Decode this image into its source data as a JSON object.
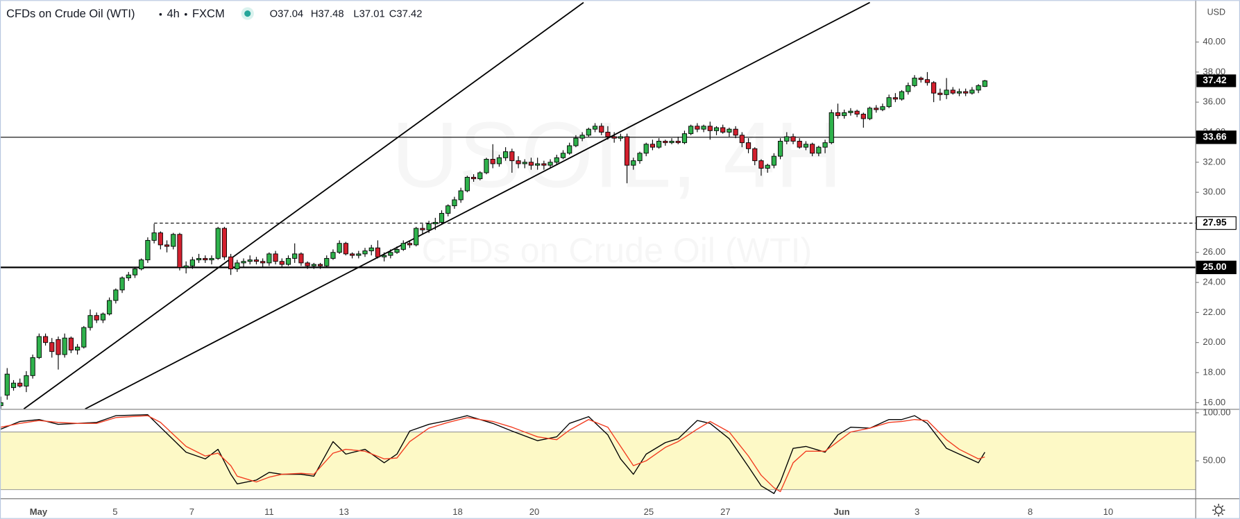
{
  "header": {
    "symbol": "CFDs on Crude Oil (WTI)",
    "interval": "4h",
    "source": "FXCM",
    "ohlc": [
      "O37.04",
      "H37.48",
      "L37.01",
      "C37.42"
    ]
  },
  "watermark": {
    "title": "USOIL, 4H",
    "subtitle": "CFDs on Crude Oil (WTI)"
  },
  "chart_data": [
    {
      "type": "candlestick",
      "currency": "USD",
      "xlim": [
        -0.12,
        187
      ],
      "ylim": [
        15.58,
        42.63
      ],
      "xticks": [
        {
          "value": 5.9,
          "label": "May"
        },
        {
          "value": 17.9,
          "label": "5"
        },
        {
          "value": 29.9,
          "label": "7"
        },
        {
          "value": 42,
          "label": "11"
        },
        {
          "value": 53.7,
          "label": "13"
        },
        {
          "value": 71.5,
          "label": "18"
        },
        {
          "value": 83.5,
          "label": "20"
        },
        {
          "value": 101.4,
          "label": "25"
        },
        {
          "value": 113.4,
          "label": "27"
        },
        {
          "value": 131.6,
          "label": "Jun"
        },
        {
          "value": 143.4,
          "label": "3"
        },
        {
          "value": 161.1,
          "label": "8"
        },
        {
          "value": 173.3,
          "label": "10"
        }
      ],
      "yticks": [
        {
          "value": 16,
          "label": "16.00"
        },
        {
          "value": 18,
          "label": "18.00"
        },
        {
          "value": 20,
          "label": "20.00"
        },
        {
          "value": 22,
          "label": "22.00"
        },
        {
          "value": 24,
          "label": "24.00"
        },
        {
          "value": 26,
          "label": "26.00"
        },
        {
          "value": 28,
          "label": "28.00"
        },
        {
          "value": 30,
          "label": "30.00"
        },
        {
          "value": 32,
          "label": "32.00"
        },
        {
          "value": 34,
          "label": "34.00"
        },
        {
          "value": 36,
          "label": "36.00"
        },
        {
          "value": 38,
          "label": "38.00"
        },
        {
          "value": 40,
          "label": "40.00"
        }
      ],
      "up_color": "#2fb24c",
      "down_color": "#d3202e",
      "ohlc": [
        [
          15.8,
          16.4,
          15.6,
          16.0
        ],
        [
          16.5,
          18.3,
          16.2,
          17.9
        ],
        [
          17.0,
          17.5,
          16.8,
          17.3
        ],
        [
          17.3,
          17.6,
          17.0,
          17.1
        ],
        [
          17.1,
          18.1,
          16.7,
          17.8
        ],
        [
          17.8,
          19.2,
          17.6,
          19.0
        ],
        [
          19.0,
          20.6,
          18.9,
          20.4
        ],
        [
          20.4,
          20.6,
          19.8,
          20.0
        ],
        [
          20.0,
          20.3,
          19.0,
          19.4
        ],
        [
          20.2,
          20.4,
          18.2,
          19.2
        ],
        [
          19.2,
          20.6,
          19.0,
          20.3
        ],
        [
          20.3,
          20.4,
          19.3,
          19.5
        ],
        [
          19.5,
          19.9,
          19.2,
          19.7
        ],
        [
          19.7,
          21.1,
          19.6,
          21.0
        ],
        [
          21.0,
          22.2,
          20.8,
          21.8
        ],
        [
          21.8,
          22.0,
          21.3,
          21.5
        ],
        [
          21.5,
          22.0,
          21.3,
          21.9
        ],
        [
          21.9,
          23.0,
          21.8,
          22.8
        ],
        [
          22.8,
          23.6,
          22.6,
          23.5
        ],
        [
          23.5,
          24.4,
          23.3,
          24.3
        ],
        [
          24.3,
          24.7,
          24.1,
          24.5
        ],
        [
          24.5,
          25.0,
          24.3,
          24.9
        ],
        [
          24.9,
          25.6,
          24.8,
          25.5
        ],
        [
          25.5,
          27.0,
          25.3,
          26.8
        ],
        [
          26.8,
          27.9,
          26.6,
          27.3
        ],
        [
          27.3,
          27.4,
          26.2,
          26.5
        ],
        [
          26.5,
          26.8,
          26.0,
          26.4
        ],
        [
          26.4,
          27.3,
          26.2,
          27.2
        ],
        [
          27.2,
          27.3,
          24.8,
          25.0
        ],
        [
          25.0,
          25.4,
          24.6,
          25.1
        ],
        [
          25.1,
          25.7,
          24.9,
          25.5
        ],
        [
          25.5,
          25.9,
          25.3,
          25.6
        ],
        [
          25.6,
          25.8,
          25.3,
          25.5
        ],
        [
          25.5,
          25.8,
          25.2,
          25.6
        ],
        [
          25.6,
          27.7,
          25.5,
          27.6
        ],
        [
          27.6,
          27.7,
          25.5,
          25.7
        ],
        [
          25.7,
          25.9,
          24.5,
          24.9
        ],
        [
          24.9,
          25.5,
          24.7,
          25.3
        ],
        [
          25.3,
          25.6,
          25.0,
          25.4
        ],
        [
          25.4,
          25.8,
          25.2,
          25.5
        ],
        [
          25.5,
          25.7,
          25.2,
          25.4
        ],
        [
          25.4,
          25.6,
          25.0,
          25.3
        ],
        [
          25.3,
          26.0,
          25.1,
          25.9
        ],
        [
          25.9,
          26.1,
          25.2,
          25.4
        ],
        [
          25.4,
          25.6,
          25.0,
          25.2
        ],
        [
          25.2,
          25.8,
          25.1,
          25.6
        ],
        [
          25.6,
          26.6,
          25.3,
          25.9
        ],
        [
          25.9,
          26.0,
          25.1,
          25.3
        ],
        [
          25.3,
          25.4,
          24.9,
          25.1
        ],
        [
          25.1,
          25.3,
          24.9,
          25.2
        ],
        [
          25.2,
          25.3,
          24.9,
          25.1
        ],
        [
          25.1,
          25.8,
          25.0,
          25.6
        ],
        [
          25.6,
          26.2,
          25.5,
          26.0
        ],
        [
          26.0,
          26.8,
          25.9,
          26.6
        ],
        [
          26.6,
          26.7,
          25.8,
          25.9
        ],
        [
          25.9,
          26.0,
          25.6,
          25.8
        ],
        [
          25.8,
          26.1,
          25.6,
          25.9
        ],
        [
          25.9,
          26.3,
          25.7,
          26.1
        ],
        [
          26.1,
          26.5,
          25.8,
          26.3
        ],
        [
          26.3,
          26.8,
          25.6,
          25.7
        ],
        [
          25.7,
          26.0,
          25.4,
          25.8
        ],
        [
          25.8,
          26.2,
          25.6,
          26.0
        ],
        [
          26.0,
          26.4,
          25.9,
          26.2
        ],
        [
          26.2,
          26.8,
          26.1,
          26.6
        ],
        [
          26.6,
          26.8,
          26.3,
          26.5
        ],
        [
          26.5,
          27.7,
          26.4,
          27.6
        ],
        [
          27.6,
          27.9,
          27.2,
          27.5
        ],
        [
          27.5,
          28.1,
          27.3,
          27.9
        ],
        [
          27.9,
          28.3,
          27.5,
          28.0
        ],
        [
          28.0,
          28.8,
          27.9,
          28.6
        ],
        [
          28.6,
          29.2,
          28.4,
          29.1
        ],
        [
          29.1,
          29.7,
          28.9,
          29.5
        ],
        [
          29.5,
          30.3,
          29.3,
          30.1
        ],
        [
          30.1,
          31.1,
          30.0,
          31.0
        ],
        [
          31.0,
          31.2,
          30.7,
          30.9
        ],
        [
          30.9,
          31.4,
          30.8,
          31.3
        ],
        [
          31.3,
          32.3,
          31.2,
          32.2
        ],
        [
          32.2,
          33.2,
          31.6,
          31.9
        ],
        [
          31.9,
          32.5,
          31.7,
          32.3
        ],
        [
          32.3,
          33.0,
          32.1,
          32.7
        ],
        [
          32.7,
          32.9,
          31.3,
          32.1
        ],
        [
          32.1,
          32.4,
          31.6,
          31.9
        ],
        [
          31.9,
          32.2,
          31.6,
          32.0
        ],
        [
          32.0,
          32.3,
          31.5,
          31.8
        ],
        [
          31.8,
          32.3,
          31.5,
          31.9
        ],
        [
          31.9,
          32.1,
          31.5,
          31.8
        ],
        [
          31.8,
          32.2,
          31.6,
          32.0
        ],
        [
          32.0,
          32.5,
          31.8,
          32.3
        ],
        [
          32.3,
          32.8,
          32.2,
          32.6
        ],
        [
          32.6,
          33.3,
          32.5,
          33.1
        ],
        [
          33.1,
          33.8,
          33.0,
          33.6
        ],
        [
          33.6,
          34.0,
          33.4,
          33.8
        ],
        [
          33.8,
          34.3,
          33.7,
          34.2
        ],
        [
          34.2,
          34.6,
          34.0,
          34.4
        ],
        [
          34.4,
          34.6,
          33.8,
          34.0
        ],
        [
          34.0,
          34.4,
          33.5,
          33.7
        ],
        [
          33.7,
          34.0,
          33.3,
          33.6
        ],
        [
          33.6,
          33.9,
          33.4,
          33.7
        ],
        [
          33.7,
          33.9,
          30.6,
          31.8
        ],
        [
          31.8,
          32.3,
          31.5,
          32.1
        ],
        [
          32.1,
          32.7,
          31.9,
          32.6
        ],
        [
          32.6,
          33.3,
          32.4,
          33.2
        ],
        [
          33.2,
          33.5,
          32.8,
          33.0
        ],
        [
          33.0,
          33.6,
          32.9,
          33.4
        ],
        [
          33.4,
          33.5,
          33.1,
          33.3
        ],
        [
          33.3,
          33.6,
          33.2,
          33.4
        ],
        [
          33.4,
          33.7,
          33.2,
          33.3
        ],
        [
          33.3,
          34.1,
          33.2,
          33.9
        ],
        [
          33.9,
          34.5,
          33.8,
          34.4
        ],
        [
          34.4,
          34.6,
          34.0,
          34.2
        ],
        [
          34.2,
          34.5,
          34.0,
          34.4
        ],
        [
          34.4,
          34.7,
          33.5,
          34.1
        ],
        [
          34.1,
          34.4,
          33.8,
          34.3
        ],
        [
          34.3,
          34.5,
          33.9,
          34.0
        ],
        [
          34.0,
          34.3,
          33.7,
          34.2
        ],
        [
          34.2,
          34.4,
          33.6,
          33.8
        ],
        [
          33.8,
          34.0,
          33.0,
          33.3
        ],
        [
          33.3,
          33.6,
          32.6,
          32.9
        ],
        [
          32.9,
          33.0,
          31.8,
          32.1
        ],
        [
          32.1,
          32.2,
          31.1,
          31.6
        ],
        [
          31.6,
          31.9,
          31.3,
          31.8
        ],
        [
          31.8,
          32.6,
          31.6,
          32.4
        ],
        [
          32.4,
          33.6,
          32.2,
          33.4
        ],
        [
          33.4,
          34.0,
          33.2,
          33.7
        ],
        [
          33.7,
          33.9,
          33.2,
          33.4
        ],
        [
          33.4,
          33.6,
          32.9,
          33.0
        ],
        [
          33.0,
          33.4,
          32.8,
          33.2
        ],
        [
          33.2,
          33.3,
          32.4,
          32.6
        ],
        [
          32.6,
          33.1,
          32.4,
          33.0
        ],
        [
          33.0,
          33.5,
          32.6,
          33.3
        ],
        [
          33.3,
          35.5,
          33.2,
          35.3
        ],
        [
          35.3,
          35.9,
          34.9,
          35.1
        ],
        [
          35.1,
          35.5,
          34.9,
          35.3
        ],
        [
          35.3,
          35.6,
          35.1,
          35.4
        ],
        [
          35.4,
          35.5,
          35.0,
          35.2
        ],
        [
          35.2,
          35.3,
          34.3,
          34.9
        ],
        [
          34.9,
          35.7,
          34.8,
          35.6
        ],
        [
          35.6,
          35.8,
          35.3,
          35.5
        ],
        [
          35.5,
          35.9,
          35.4,
          35.7
        ],
        [
          35.7,
          36.5,
          35.6,
          36.3
        ],
        [
          36.3,
          36.6,
          36.0,
          36.2
        ],
        [
          36.2,
          36.8,
          36.1,
          36.7
        ],
        [
          36.7,
          37.3,
          36.5,
          37.1
        ],
        [
          37.1,
          37.8,
          37.0,
          37.6
        ],
        [
          37.6,
          37.7,
          37.3,
          37.5
        ],
        [
          37.5,
          38.0,
          37.1,
          37.3
        ],
        [
          37.3,
          37.4,
          36.0,
          36.6
        ],
        [
          36.6,
          36.9,
          36.1,
          36.5
        ],
        [
          36.5,
          37.6,
          36.2,
          36.8
        ],
        [
          36.8,
          37.0,
          36.5,
          36.6
        ],
        [
          36.6,
          36.9,
          36.4,
          36.7
        ],
        [
          36.7,
          36.9,
          36.4,
          36.6
        ],
        [
          36.6,
          37.0,
          36.5,
          36.8
        ],
        [
          36.8,
          37.2,
          36.6,
          37.1
        ],
        [
          37.04,
          37.48,
          37.01,
          37.42
        ]
      ],
      "last_price": {
        "value": 37.42,
        "label": "37.42"
      },
      "hlines": [
        {
          "value": 33.66,
          "label": "33.66",
          "style": "solid",
          "width": 1
        },
        {
          "value": 25.0,
          "label": "25.00",
          "style": "solid",
          "width": 2
        },
        {
          "value": 27.95,
          "label": "27.95",
          "style": "dashed",
          "width": 1,
          "start": 24
        }
      ],
      "trendlines": [
        {
          "x": [
            3.6,
            91.2
          ],
          "y": [
            15.58,
            42.63
          ]
        },
        {
          "x": [
            13.2,
            136
          ],
          "y": [
            15.58,
            42.63
          ]
        }
      ]
    },
    {
      "type": "line",
      "ylim": [
        11,
        104
      ],
      "yticks": [
        {
          "value": 50,
          "label": "50.00"
        },
        {
          "value": 100,
          "label": "100.00"
        }
      ],
      "band": [
        20,
        80
      ],
      "band_color": "#fdf9c6",
      "x": [
        0,
        3,
        6,
        9,
        12,
        15,
        18,
        23,
        25,
        29,
        32,
        34,
        36,
        37,
        40,
        42,
        44,
        47,
        49,
        52,
        54,
        57,
        60,
        62,
        64,
        67,
        70,
        73,
        77,
        80,
        84,
        87,
        89,
        92,
        95,
        97,
        99,
        101,
        104,
        106,
        109,
        111,
        114,
        117,
        119,
        121,
        122,
        124,
        126,
        129,
        131,
        133,
        136,
        139,
        141,
        143,
        145,
        148,
        150,
        153,
        154
      ],
      "series": [
        {
          "color": "#000000",
          "values": [
            83,
            91,
            93,
            88,
            89,
            90,
            97,
            98,
            85,
            59,
            52,
            62,
            36,
            26,
            30,
            38,
            36,
            36,
            34,
            70,
            57,
            62,
            48,
            57,
            81,
            88,
            92,
            97,
            89,
            81,
            71,
            75,
            89,
            96,
            77,
            52,
            36,
            57,
            69,
            73,
            92,
            89,
            73,
            44,
            24,
            16,
            28,
            63,
            65,
            59,
            77,
            85,
            84,
            93,
            93,
            97,
            89,
            63,
            57,
            48,
            59
          ]
        },
        {
          "color": "#f23b1f",
          "values": [
            85,
            89,
            92,
            90,
            89,
            89,
            95,
            97,
            90,
            65,
            55,
            58,
            45,
            34,
            28,
            33,
            36,
            37,
            36,
            58,
            62,
            60,
            52,
            53,
            70,
            84,
            90,
            95,
            91,
            85,
            75,
            72,
            82,
            93,
            85,
            65,
            45,
            50,
            64,
            70,
            83,
            91,
            80,
            55,
            35,
            22,
            18,
            48,
            60,
            60,
            70,
            80,
            84,
            90,
            91,
            93,
            92,
            72,
            62,
            52,
            54
          ]
        }
      ]
    }
  ]
}
